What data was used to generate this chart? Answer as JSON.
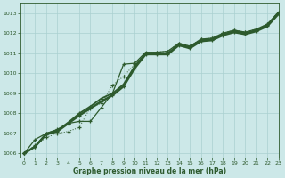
{
  "background_color": "#cce8e8",
  "grid_color": "#aad0d0",
  "line_color": "#2d5a2d",
  "xlabel": "Graphe pression niveau de la mer (hPa)",
  "ylim": [
    1005.8,
    1013.5
  ],
  "xlim": [
    -0.3,
    23
  ],
  "yticks": [
    1006,
    1007,
    1008,
    1009,
    1010,
    1011,
    1012,
    1013
  ],
  "xticks": [
    0,
    1,
    2,
    3,
    4,
    5,
    6,
    7,
    8,
    9,
    10,
    11,
    12,
    13,
    14,
    15,
    16,
    17,
    18,
    19,
    20,
    21,
    22,
    23
  ],
  "series_dotted": [
    1006.0,
    1006.4,
    1006.8,
    1007.0,
    1007.1,
    1007.3,
    1008.3,
    1008.5,
    1009.4,
    1009.85,
    1010.45,
    1011.0,
    1011.05,
    1011.1,
    1011.5,
    1011.35,
    1011.7,
    1011.75,
    1012.0,
    1012.15,
    1012.05,
    1012.2,
    1012.45,
    1013.05
  ],
  "series_high": [
    1006.0,
    1006.7,
    1007.0,
    1007.2,
    1007.5,
    1007.6,
    1007.6,
    1008.3,
    1009.0,
    1010.45,
    1010.5,
    1011.05,
    1011.05,
    1011.1,
    1011.5,
    1011.35,
    1011.7,
    1011.75,
    1012.0,
    1012.15,
    1012.05,
    1012.2,
    1012.45,
    1013.05
  ],
  "series_mid1": [
    1006.0,
    1006.35,
    1007.0,
    1007.15,
    1007.55,
    1008.0,
    1008.35,
    1008.75,
    1009.0,
    1009.45,
    1010.35,
    1011.0,
    1011.0,
    1011.0,
    1011.45,
    1011.3,
    1011.65,
    1011.7,
    1011.95,
    1012.1,
    1012.0,
    1012.15,
    1012.4,
    1013.0
  ],
  "series_mid2": [
    1006.0,
    1006.35,
    1006.95,
    1007.1,
    1007.5,
    1007.9,
    1008.25,
    1008.6,
    1008.9,
    1009.35,
    1010.25,
    1010.95,
    1010.95,
    1010.95,
    1011.4,
    1011.25,
    1011.6,
    1011.65,
    1011.9,
    1012.05,
    1011.95,
    1012.1,
    1012.35,
    1012.95
  ]
}
